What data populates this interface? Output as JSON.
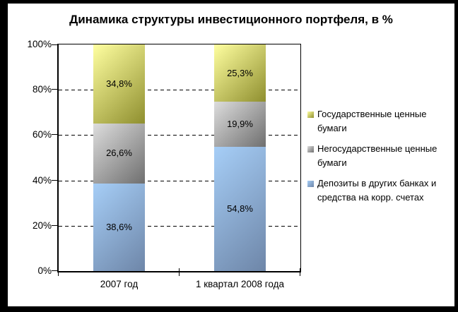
{
  "window": {
    "frame_color": "#000000",
    "canvas_color": "#ffffff"
  },
  "chart_data": {
    "type": "bar",
    "stacked": true,
    "title": "Динамика структуры инвестиционного портфеля, в %",
    "categories": [
      "2007 год",
      "1 квартал 2008 года"
    ],
    "series": [
      {
        "name": "Депозиты в других банках и средства на корр. счетах",
        "values": [
          38.6,
          54.8
        ],
        "data_labels": [
          "38,6%",
          "54,8%"
        ],
        "color_light": "#A6CEF7",
        "color_dark": "#6E86A8"
      },
      {
        "name": "Негосударственные ценные бумаги",
        "values": [
          26.6,
          19.9
        ],
        "data_labels": [
          "26,6%",
          "19,9%"
        ],
        "color_light": "#DDDDDD",
        "color_dark": "#6F6F6F"
      },
      {
        "name": "Государственные ценные бумаги",
        "values": [
          34.8,
          25.3
        ],
        "data_labels": [
          "34,8%",
          "25,3%"
        ],
        "color_light": "#FFFFA0",
        "color_dark": "#8F8F2F"
      }
    ],
    "y_axis": {
      "ticks": [
        "0%",
        "20%",
        "40%",
        "60%",
        "80%",
        "100%"
      ],
      "min": 0,
      "max": 100
    },
    "grid": {
      "horizontal_dashed_at": [
        20,
        40,
        60,
        80
      ]
    },
    "legend": {
      "position": "right",
      "order_top_to_bottom": [
        "Государственные ценные бумаги",
        "Негосударственные ценные бумаги",
        "Депозиты в других банках и средства на корр. счетах"
      ]
    },
    "axis_color": "#000000",
    "label_color": "#000000"
  }
}
